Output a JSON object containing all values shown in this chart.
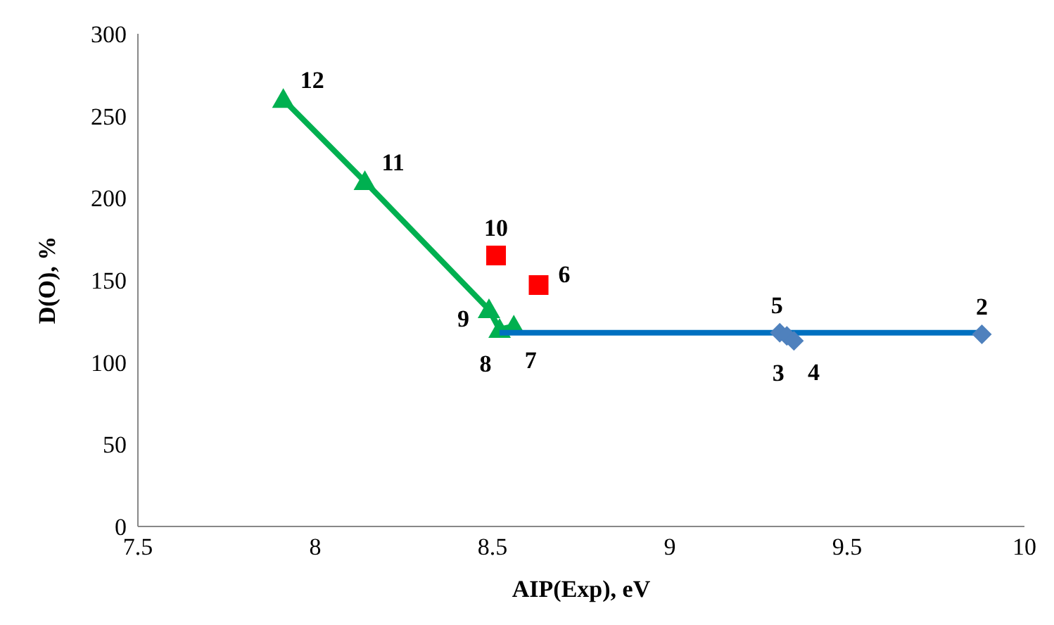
{
  "chart_data": {
    "type": "scatter",
    "xlabel": "AIP(Exp), eV",
    "ylabel": "D(O), %",
    "xlim": [
      7.5,
      10
    ],
    "xticks": [
      7.5,
      8,
      8.5,
      9,
      9.5,
      10
    ],
    "ylim": [
      0,
      300
    ],
    "yticks": [
      0,
      50,
      100,
      150,
      200,
      250,
      300
    ],
    "grid": false,
    "legend": false,
    "series": [
      {
        "type": "line",
        "color": "#00b050",
        "marker": "triangle",
        "x": [
          7.91,
          8.14,
          8.49,
          8.52,
          8.56
        ],
        "values": [
          260,
          210,
          132,
          120,
          122
        ]
      },
      {
        "type": "line",
        "color": "#0070c0",
        "marker": "none",
        "x": [
          8.52,
          9.88
        ],
        "values": [
          118,
          118
        ]
      },
      {
        "type": "scatter",
        "color": "#4f81bd",
        "marker": "diamond",
        "x": [
          9.31,
          9.33,
          9.35,
          9.88
        ],
        "values": [
          118,
          116,
          113,
          117
        ]
      },
      {
        "type": "scatter",
        "color": "#ff0000",
        "marker": "square",
        "x": [
          8.51,
          8.63
        ],
        "values": [
          165,
          147
        ]
      }
    ],
    "annotations": [
      {
        "text": "12",
        "x": 7.91,
        "y": 260
      },
      {
        "text": "11",
        "x": 8.14,
        "y": 210
      },
      {
        "text": "9",
        "x": 8.49,
        "y": 132
      },
      {
        "text": "8",
        "x": 8.52,
        "y": 120
      },
      {
        "text": "7",
        "x": 8.56,
        "y": 122
      },
      {
        "text": "10",
        "x": 8.51,
        "y": 165
      },
      {
        "text": "6",
        "x": 8.63,
        "y": 147
      },
      {
        "text": "5",
        "x": 9.31,
        "y": 118
      },
      {
        "text": "3",
        "x": 9.33,
        "y": 116
      },
      {
        "text": "4",
        "x": 9.35,
        "y": 113
      },
      {
        "text": "2",
        "x": 9.88,
        "y": 117
      }
    ]
  }
}
